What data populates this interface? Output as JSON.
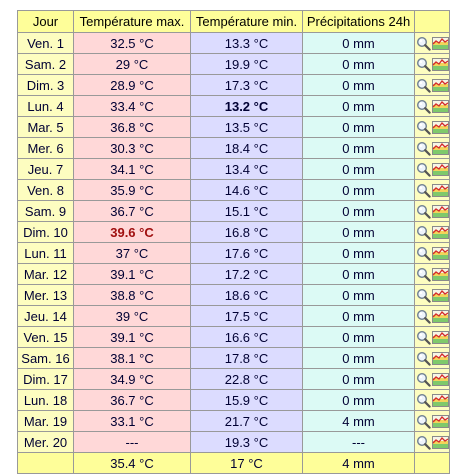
{
  "colors": {
    "header_bg": "#fefe99",
    "day_bg": "#fdfdc0",
    "tmax_bg": "#ffd8d8",
    "tmin_bg": "#dcdcff",
    "precip_bg": "#dcfaf5",
    "record_max_color": "#a01010"
  },
  "headers": {
    "day": "Jour",
    "tmax": "Température max.",
    "tmin": "Température min.",
    "precip": "Précipitations 24h"
  },
  "rows": [
    {
      "day": "Ven. 1",
      "tmax": "32.5 °C",
      "tmin": "13.3 °C",
      "precip": "0 mm"
    },
    {
      "day": "Sam. 2",
      "tmax": "29 °C",
      "tmin": "19.9 °C",
      "precip": "0 mm"
    },
    {
      "day": "Dim. 3",
      "tmax": "28.9 °C",
      "tmin": "17.3 °C",
      "precip": "0 mm"
    },
    {
      "day": "Lun. 4",
      "tmax": "33.4 °C",
      "tmin": "13.2 °C",
      "precip": "0 mm",
      "tmin_emphasis": "lowest"
    },
    {
      "day": "Mar. 5",
      "tmax": "36.8 °C",
      "tmin": "13.5 °C",
      "precip": "0 mm"
    },
    {
      "day": "Mer. 6",
      "tmax": "30.3 °C",
      "tmin": "18.4 °C",
      "precip": "0 mm"
    },
    {
      "day": "Jeu. 7",
      "tmax": "34.1 °C",
      "tmin": "13.4 °C",
      "precip": "0 mm"
    },
    {
      "day": "Ven. 8",
      "tmax": "35.9 °C",
      "tmin": "14.6 °C",
      "precip": "0 mm"
    },
    {
      "day": "Sam. 9",
      "tmax": "36.7 °C",
      "tmin": "15.1 °C",
      "precip": "0 mm"
    },
    {
      "day": "Dim. 10",
      "tmax": "39.6 °C",
      "tmin": "16.8 °C",
      "precip": "0 mm",
      "tmax_emphasis": "highest"
    },
    {
      "day": "Lun. 11",
      "tmax": "37 °C",
      "tmin": "17.6 °C",
      "precip": "0 mm"
    },
    {
      "day": "Mar. 12",
      "tmax": "39.1 °C",
      "tmin": "17.2 °C",
      "precip": "0 mm"
    },
    {
      "day": "Mer. 13",
      "tmax": "38.8 °C",
      "tmin": "18.6 °C",
      "precip": "0 mm"
    },
    {
      "day": "Jeu. 14",
      "tmax": "39 °C",
      "tmin": "17.5 °C",
      "precip": "0 mm"
    },
    {
      "day": "Ven. 15",
      "tmax": "39.1 °C",
      "tmin": "16.6 °C",
      "precip": "0 mm"
    },
    {
      "day": "Sam. 16",
      "tmax": "38.1 °C",
      "tmin": "17.8 °C",
      "precip": "0 mm"
    },
    {
      "day": "Dim. 17",
      "tmax": "34.9 °C",
      "tmin": "22.8 °C",
      "precip": "0 mm"
    },
    {
      "day": "Lun. 18",
      "tmax": "36.7 °C",
      "tmin": "15.9 °C",
      "precip": "0 mm"
    },
    {
      "day": "Mar. 19",
      "tmax": "33.1 °C",
      "tmin": "21.7 °C",
      "precip": "4 mm"
    },
    {
      "day": "Mer. 20",
      "tmax": "---",
      "tmin": "19.3 °C",
      "precip": "---"
    }
  ],
  "summary": {
    "tmax": "35.4 °C",
    "tmin": "17 °C",
    "precip": "4 mm"
  },
  "row_icons": [
    "magnifier-icon",
    "chart-thumbnail-icon"
  ]
}
